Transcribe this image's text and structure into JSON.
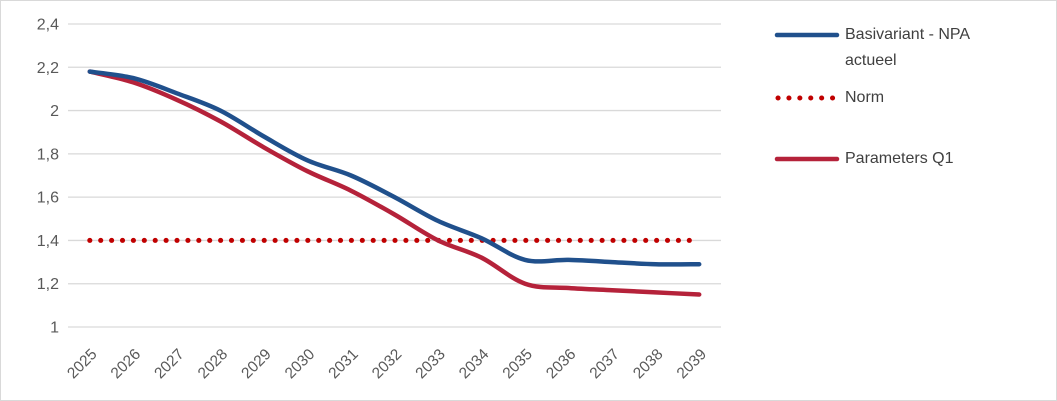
{
  "chart": {
    "background": "#FFFFFF",
    "border_color": "#D9D9D9"
  },
  "legend": {
    "position": "right",
    "items": [
      {
        "label": "Basivariant - NPA actueel",
        "style": "solid",
        "color": "#20508C"
      },
      {
        "label": "Norm",
        "style": "dotted",
        "color": "#C00000"
      },
      {
        "label": "Parameters Q1",
        "style": "solid",
        "color": "#B5223A"
      }
    ]
  },
  "chart_data": {
    "type": "line",
    "title": "",
    "xlabel": "",
    "ylabel": "",
    "categories": [
      "2025",
      "2026",
      "2027",
      "2028",
      "2029",
      "2030",
      "2031",
      "2032",
      "2033",
      "2034",
      "2035",
      "2036",
      "2037",
      "2038",
      "2039"
    ],
    "series": [
      {
        "name": "Basivariant - NPA actueel",
        "color": "#20508C",
        "dash": "solid",
        "smooth": true,
        "z": 2,
        "values": [
          2.18,
          2.15,
          2.08,
          2.0,
          1.88,
          1.77,
          1.7,
          1.6,
          1.49,
          1.41,
          1.31,
          1.31,
          1.3,
          1.29,
          1.29
        ]
      },
      {
        "name": "Norm",
        "color": "#C00000",
        "dash": "dot",
        "smooth": false,
        "z": 0,
        "values": [
          1.4,
          1.4,
          1.4,
          1.4,
          1.4,
          1.4,
          1.4,
          1.4,
          1.4,
          1.4,
          1.4,
          1.4,
          1.4,
          1.4,
          1.4
        ]
      },
      {
        "name": "Parameters Q1",
        "color": "#B5223A",
        "dash": "solid",
        "smooth": true,
        "z": 1,
        "values": [
          2.18,
          2.13,
          2.05,
          1.95,
          1.83,
          1.72,
          1.63,
          1.52,
          1.4,
          1.32,
          1.2,
          1.18,
          1.17,
          1.16,
          1.15
        ]
      }
    ],
    "ylim": [
      1,
      2.4
    ],
    "yticks": [
      {
        "value": 2.4,
        "label": "2,4"
      },
      {
        "value": 2.2,
        "label": "2,2"
      },
      {
        "value": 2.0,
        "label": "2"
      },
      {
        "value": 1.8,
        "label": "1,8"
      },
      {
        "value": 1.6,
        "label": "1,6"
      },
      {
        "value": 1.4,
        "label": "1,4"
      },
      {
        "value": 1.2,
        "label": "1,2"
      },
      {
        "value": 1.0,
        "label": "1"
      }
    ],
    "grid": true,
    "gridline_color": "#D9D9D9",
    "tick_color": "#595959",
    "legend_position": "right",
    "x_tick_rotation": -45
  }
}
